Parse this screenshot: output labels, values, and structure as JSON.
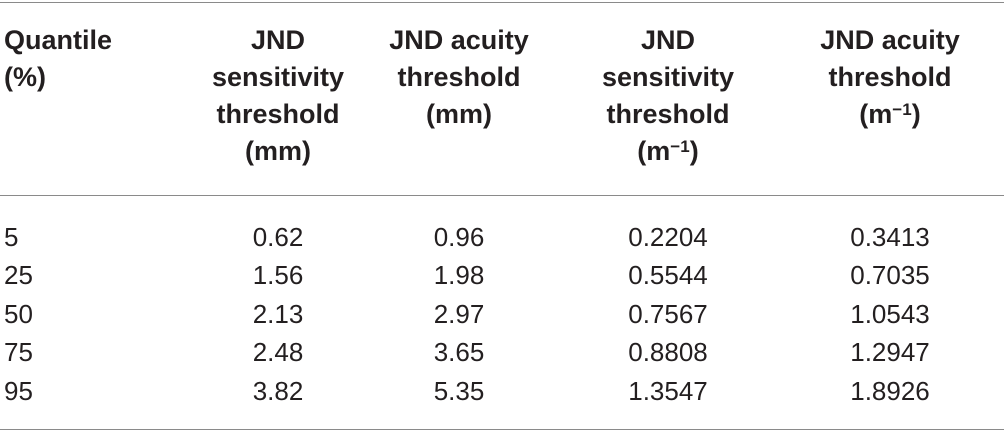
{
  "table": {
    "headers": [
      {
        "lines": [
          "Quantile",
          "(%)"
        ]
      },
      {
        "lines": [
          "JND",
          "sensitivity",
          "threshold",
          "(mm)"
        ]
      },
      {
        "lines": [
          "JND acuity",
          "threshold",
          "(mm)"
        ]
      },
      {
        "lines": [
          "JND",
          "sensitivity",
          "threshold"
        ],
        "unit_base": "(m",
        "unit_sup": "−1",
        "unit_close": ")"
      },
      {
        "lines": [
          "JND acuity",
          "threshold"
        ],
        "unit_base": "(m",
        "unit_sup": "−1",
        "unit_close": ")"
      }
    ],
    "rows": [
      [
        "5",
        "0.62",
        "0.96",
        "0.2204",
        "0.3413"
      ],
      [
        "25",
        "1.56",
        "1.98",
        "0.5544",
        "0.7035"
      ],
      [
        "50",
        "2.13",
        "2.97",
        "0.7567",
        "1.0543"
      ],
      [
        "75",
        "2.48",
        "3.65",
        "0.8808",
        "1.2947"
      ],
      [
        "95",
        "3.82",
        "5.35",
        "1.3547",
        "1.8926"
      ]
    ]
  }
}
